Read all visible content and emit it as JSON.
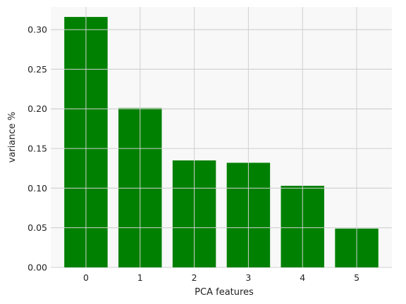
{
  "chart_data": {
    "type": "bar",
    "categories": [
      "0",
      "1",
      "2",
      "3",
      "4",
      "5"
    ],
    "values": [
      0.316,
      0.201,
      0.135,
      0.132,
      0.103,
      0.049
    ],
    "title": "",
    "xlabel": "PCA features",
    "ylabel": "variance %",
    "ylim": [
      0,
      0.3285
    ],
    "yticks": [
      "0.00",
      "0.05",
      "0.10",
      "0.15",
      "0.20",
      "0.25",
      "0.30"
    ],
    "grid": true,
    "bar_color": "#008000",
    "plot_background": "#f8f8f8",
    "grid_color": "#d0d0d0"
  }
}
